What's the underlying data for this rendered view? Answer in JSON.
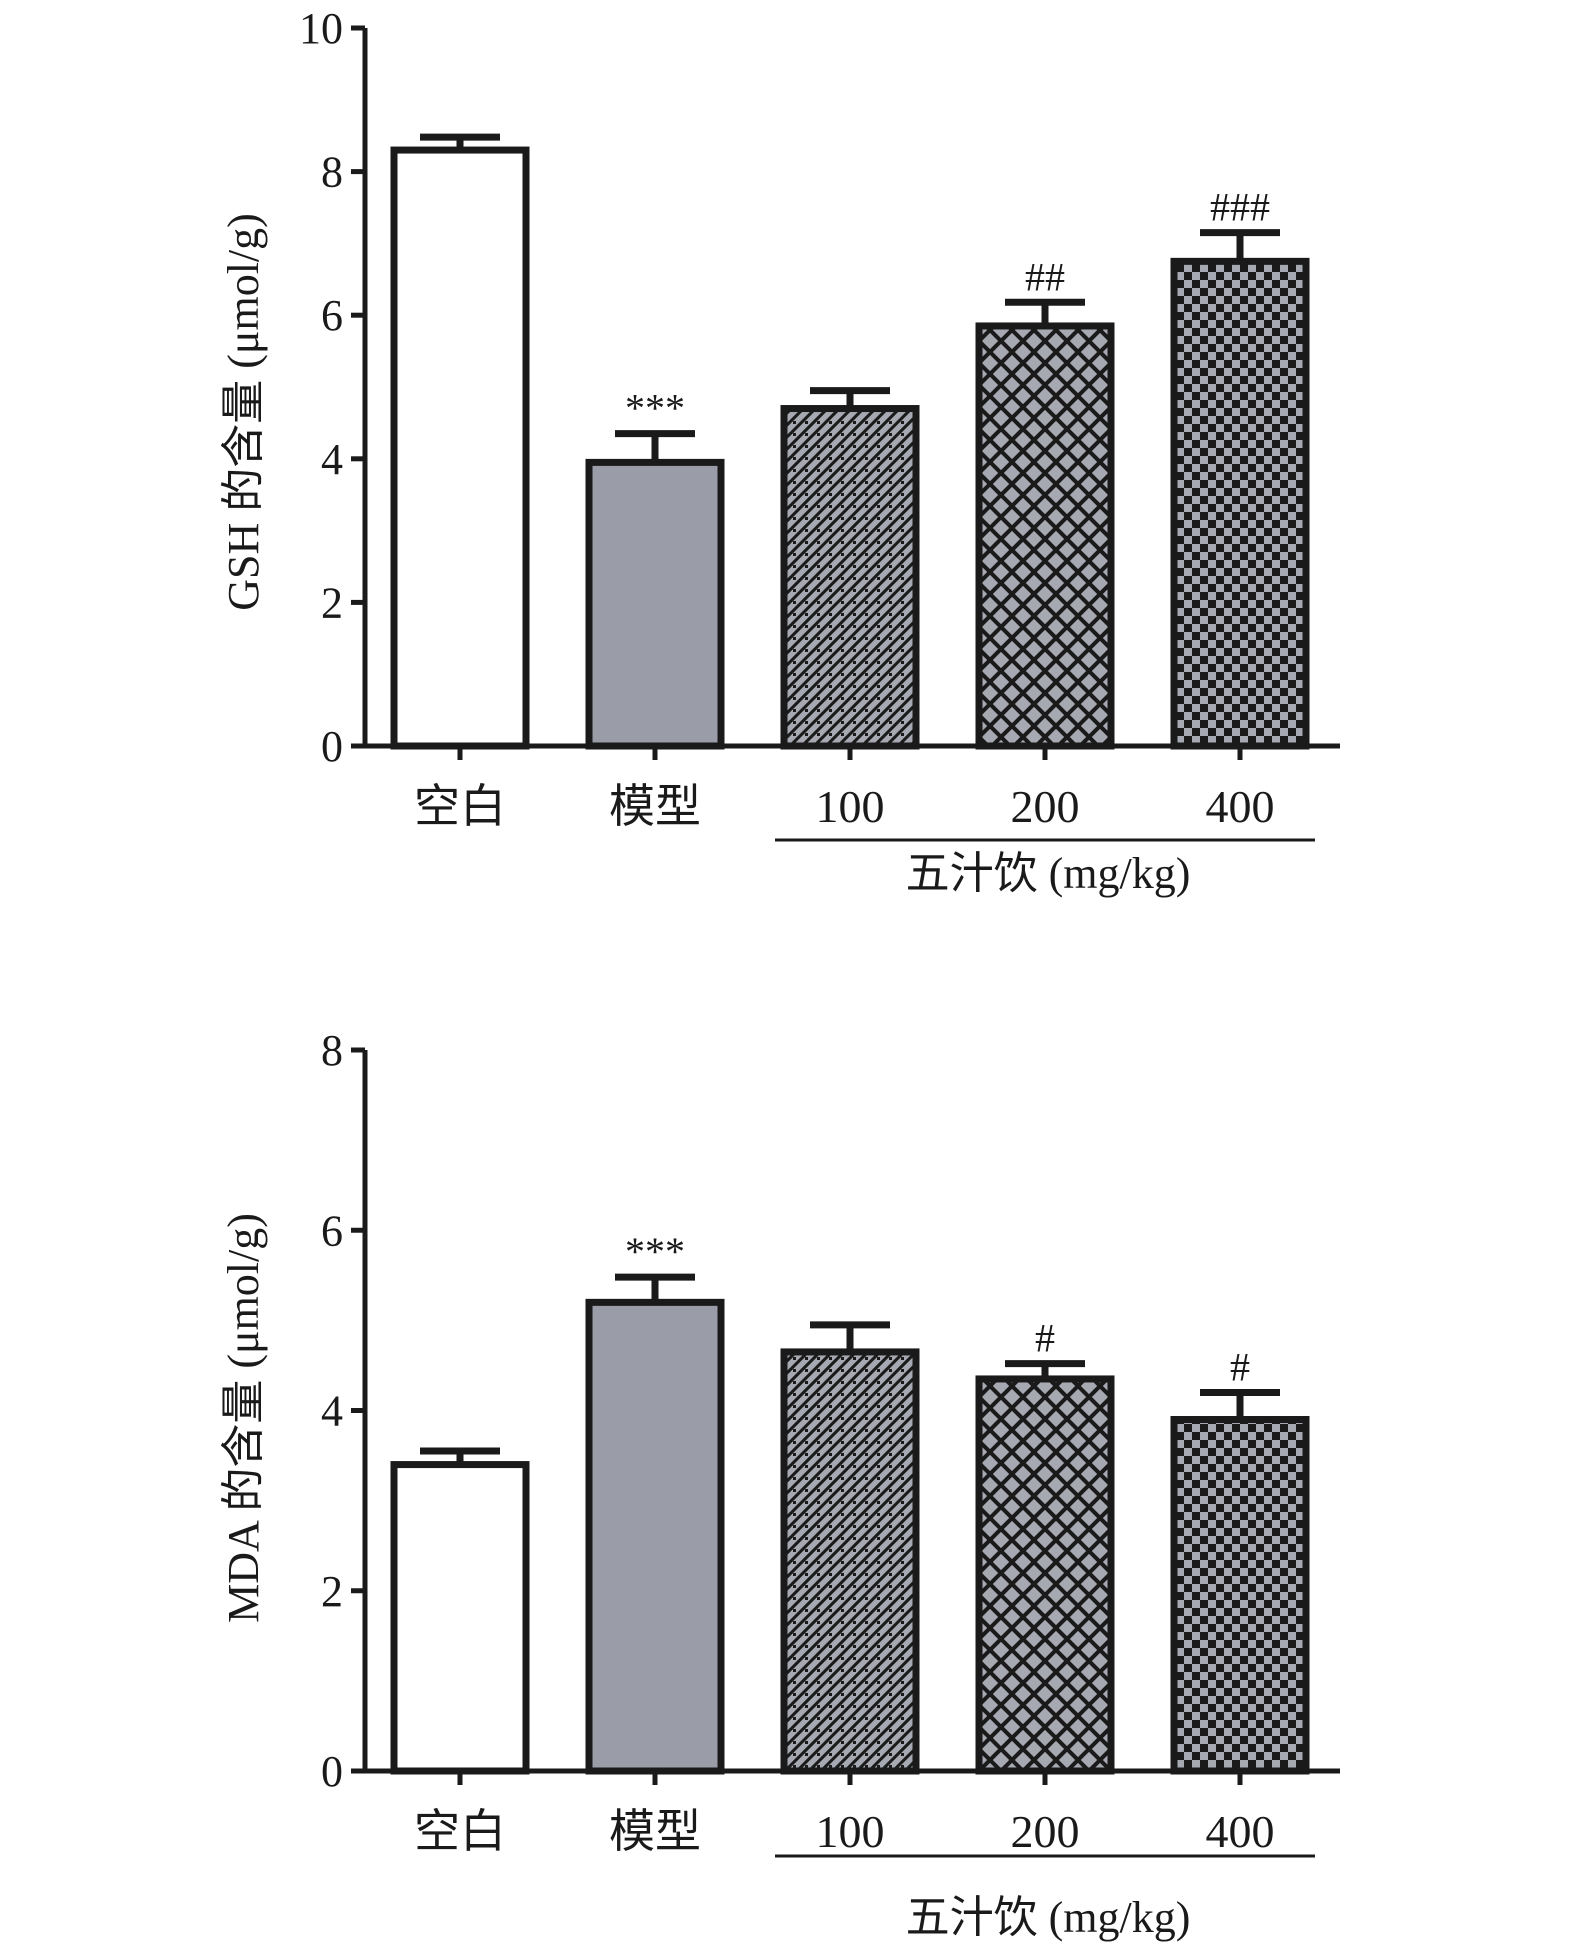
{
  "colors": {
    "axis": "#1a1a1a",
    "white_bar": "#ffffff",
    "gray_bar": "#9a9ca8",
    "pattern_dark": "#1a1a1a",
    "pattern_light": "#a6a8b2"
  },
  "chart_data": [
    {
      "type": "bar",
      "ylabel": "GSH 的含量 (μmol/g)",
      "ylim": [
        0,
        10
      ],
      "yticks": [
        0,
        2,
        4,
        6,
        8,
        10
      ],
      "categories": [
        "空白",
        "模型",
        "100",
        "200",
        "400"
      ],
      "group_label": "五汁饮 (mg/kg)",
      "values": [
        8.3,
        3.95,
        4.7,
        5.85,
        6.75
      ],
      "errors": [
        0.18,
        0.4,
        0.25,
        0.33,
        0.4
      ],
      "annotations": [
        "",
        "***",
        "",
        "##",
        "###"
      ],
      "fills": [
        "white",
        "gray",
        "diagonal",
        "lattice",
        "checker"
      ]
    },
    {
      "type": "bar",
      "ylabel": "MDA 的含量 (μmol/g)",
      "ylim": [
        0,
        8
      ],
      "yticks": [
        0,
        2,
        4,
        6,
        8
      ],
      "categories": [
        "空白",
        "模型",
        "100",
        "200",
        "400"
      ],
      "group_label": "五汁饮 (mg/kg)",
      "values": [
        3.4,
        5.2,
        4.65,
        4.35,
        3.9
      ],
      "errors": [
        0.15,
        0.28,
        0.3,
        0.17,
        0.3
      ],
      "annotations": [
        "",
        "***",
        "",
        "#",
        "#"
      ],
      "fills": [
        "white",
        "gray",
        "diagonal",
        "lattice",
        "checker"
      ]
    }
  ]
}
